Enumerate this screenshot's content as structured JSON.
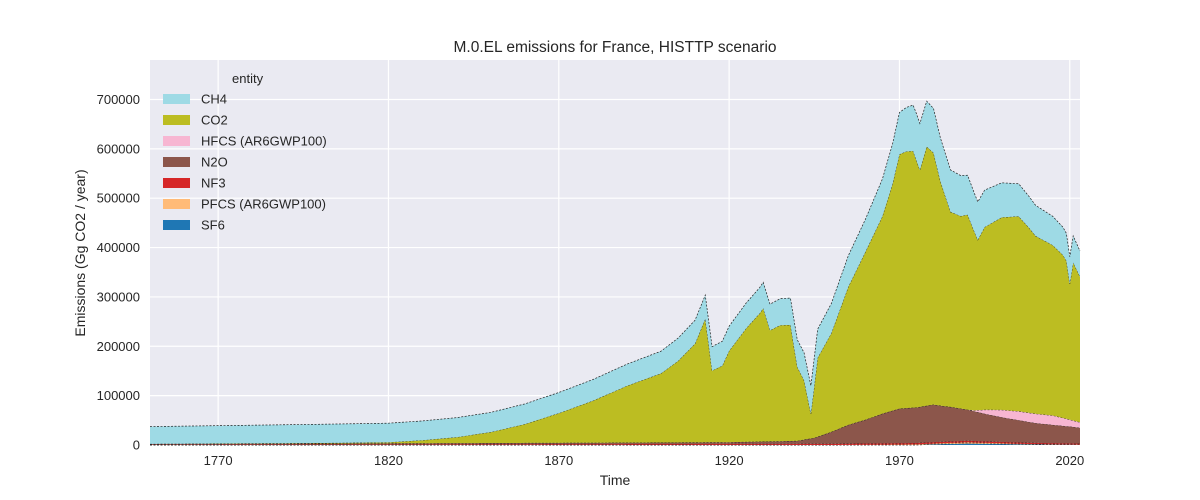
{
  "chart_data": {
    "type": "area",
    "stacked": true,
    "title": "M.0.EL emissions for France, HISTTP scenario",
    "xlabel": "Time",
    "ylabel": "Emissions (Gg CO2 / year)",
    "xlim": [
      1750,
      2023
    ],
    "ylim": [
      0,
      780000
    ],
    "x_ticks": [
      1770,
      1820,
      1870,
      1920,
      1970,
      2020
    ],
    "y_ticks": [
      0,
      100000,
      200000,
      300000,
      400000,
      500000,
      600000,
      700000
    ],
    "grid": true,
    "legend": {
      "title": "entity",
      "placement": "top-left"
    },
    "series": [
      {
        "name": "SF6",
        "color": "#1f77b4",
        "points": [
          [
            1750,
            0
          ],
          [
            1950,
            0
          ],
          [
            1975,
            0
          ],
          [
            1980,
            1500
          ],
          [
            1990,
            3000
          ],
          [
            1995,
            2500
          ],
          [
            2000,
            2000
          ],
          [
            2005,
            1500
          ],
          [
            2010,
            1000
          ],
          [
            2015,
            800
          ],
          [
            2020,
            700
          ],
          [
            2023,
            600
          ]
        ]
      },
      {
        "name": "PFCS (AR6GWP100)",
        "color": "#ffbb78",
        "points": [
          [
            1750,
            0
          ],
          [
            1950,
            0
          ],
          [
            1960,
            500
          ],
          [
            1970,
            1000
          ],
          [
            1980,
            1500
          ],
          [
            1990,
            2500
          ],
          [
            2000,
            1500
          ],
          [
            2010,
            800
          ],
          [
            2020,
            500
          ],
          [
            2023,
            400
          ]
        ]
      },
      {
        "name": "NF3",
        "color": "#d62728",
        "points": [
          [
            1750,
            800
          ],
          [
            1800,
            1000
          ],
          [
            1850,
            1500
          ],
          [
            1900,
            2000
          ],
          [
            1950,
            2500
          ],
          [
            1970,
            2800
          ],
          [
            1990,
            3000
          ],
          [
            2000,
            2700
          ],
          [
            2010,
            2500
          ],
          [
            2020,
            2200
          ],
          [
            2023,
            2000
          ]
        ]
      },
      {
        "name": "N2O",
        "color": "#8c564b",
        "points": [
          [
            1750,
            1500
          ],
          [
            1800,
            2000
          ],
          [
            1850,
            2500
          ],
          [
            1900,
            3000
          ],
          [
            1920,
            3500
          ],
          [
            1940,
            6000
          ],
          [
            1945,
            12000
          ],
          [
            1950,
            24000
          ],
          [
            1955,
            38000
          ],
          [
            1960,
            48000
          ],
          [
            1965,
            60000
          ],
          [
            1970,
            70000
          ],
          [
            1975,
            72000
          ],
          [
            1980,
            76000
          ],
          [
            1983,
            72000
          ],
          [
            1985,
            70000
          ],
          [
            1990,
            63000
          ],
          [
            1995,
            56000
          ],
          [
            2000,
            50000
          ],
          [
            2005,
            45000
          ],
          [
            2010,
            40000
          ],
          [
            2015,
            37000
          ],
          [
            2020,
            34000
          ],
          [
            2023,
            32000
          ]
        ]
      },
      {
        "name": "HFCS (AR6GWP100)",
        "color": "#f7b6d2",
        "points": [
          [
            1750,
            0
          ],
          [
            1990,
            0
          ],
          [
            1992,
            2000
          ],
          [
            1995,
            8000
          ],
          [
            2000,
            15000
          ],
          [
            2005,
            18000
          ],
          [
            2010,
            19000
          ],
          [
            2015,
            19000
          ],
          [
            2020,
            14000
          ],
          [
            2023,
            11000
          ]
        ]
      },
      {
        "name": "CO2",
        "color": "#bcbd22",
        "points": [
          [
            1750,
            0
          ],
          [
            1800,
            1000
          ],
          [
            1820,
            2000
          ],
          [
            1830,
            6000
          ],
          [
            1840,
            12000
          ],
          [
            1850,
            22000
          ],
          [
            1860,
            38000
          ],
          [
            1870,
            60000
          ],
          [
            1880,
            85000
          ],
          [
            1890,
            115000
          ],
          [
            1900,
            140000
          ],
          [
            1905,
            165000
          ],
          [
            1910,
            200000
          ],
          [
            1913,
            250000
          ],
          [
            1915,
            145000
          ],
          [
            1918,
            155000
          ],
          [
            1920,
            185000
          ],
          [
            1925,
            230000
          ],
          [
            1929,
            260000
          ],
          [
            1930,
            270000
          ],
          [
            1932,
            225000
          ],
          [
            1935,
            235000
          ],
          [
            1938,
            235000
          ],
          [
            1940,
            150000
          ],
          [
            1942,
            120000
          ],
          [
            1944,
            50000
          ],
          [
            1946,
            160000
          ],
          [
            1950,
            200000
          ],
          [
            1955,
            280000
          ],
          [
            1960,
            340000
          ],
          [
            1965,
            400000
          ],
          [
            1968,
            460000
          ],
          [
            1970,
            515000
          ],
          [
            1972,
            520000
          ],
          [
            1974,
            520000
          ],
          [
            1976,
            480000
          ],
          [
            1978,
            525000
          ],
          [
            1980,
            510000
          ],
          [
            1982,
            455000
          ],
          [
            1985,
            395000
          ],
          [
            1988,
            390000
          ],
          [
            1990,
            395000
          ],
          [
            1993,
            345000
          ],
          [
            1995,
            370000
          ],
          [
            2000,
            390000
          ],
          [
            2005,
            395000
          ],
          [
            2008,
            375000
          ],
          [
            2010,
            360000
          ],
          [
            2015,
            345000
          ],
          [
            2018,
            330000
          ],
          [
            2019,
            320000
          ],
          [
            2020,
            275000
          ],
          [
            2021,
            320000
          ],
          [
            2023,
            295000
          ]
        ]
      },
      {
        "name": "CH4",
        "color": "#9edae5",
        "points": [
          [
            1750,
            35000
          ],
          [
            1800,
            38000
          ],
          [
            1850,
            40000
          ],
          [
            1870,
            42000
          ],
          [
            1900,
            45000
          ],
          [
            1920,
            50000
          ],
          [
            1940,
            55000
          ],
          [
            1950,
            60000
          ],
          [
            1960,
            66000
          ],
          [
            1970,
            85000
          ],
          [
            1975,
            95000
          ],
          [
            1980,
            90000
          ],
          [
            1985,
            85000
          ],
          [
            1990,
            80000
          ],
          [
            2000,
            70000
          ],
          [
            2010,
            62000
          ],
          [
            2020,
            55000
          ],
          [
            2023,
            52000
          ]
        ]
      }
    ]
  }
}
